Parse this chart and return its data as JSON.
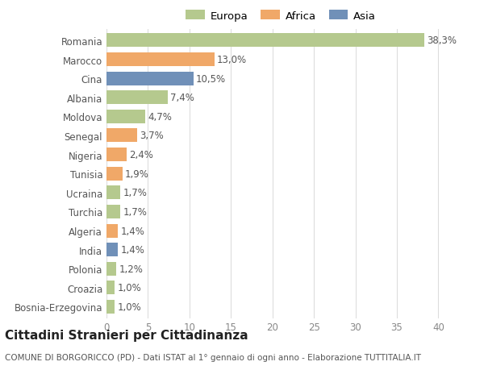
{
  "countries": [
    "Romania",
    "Marocco",
    "Cina",
    "Albania",
    "Moldova",
    "Senegal",
    "Nigeria",
    "Tunisia",
    "Ucraina",
    "Turchia",
    "Algeria",
    "India",
    "Polonia",
    "Croazia",
    "Bosnia-Erzegovina"
  ],
  "values": [
    38.3,
    13.0,
    10.5,
    7.4,
    4.7,
    3.7,
    2.4,
    1.9,
    1.7,
    1.7,
    1.4,
    1.4,
    1.2,
    1.0,
    1.0
  ],
  "labels": [
    "38,3%",
    "13,0%",
    "10,5%",
    "7,4%",
    "4,7%",
    "3,7%",
    "2,4%",
    "1,9%",
    "1,7%",
    "1,7%",
    "1,4%",
    "1,4%",
    "1,2%",
    "1,0%",
    "1,0%"
  ],
  "colors": [
    "#b5c98e",
    "#f0a868",
    "#7090b8",
    "#b5c98e",
    "#b5c98e",
    "#f0a868",
    "#f0a868",
    "#f0a868",
    "#b5c98e",
    "#b5c98e",
    "#f0a868",
    "#7090b8",
    "#b5c98e",
    "#b5c98e",
    "#b5c98e"
  ],
  "legend_labels": [
    "Europa",
    "Africa",
    "Asia"
  ],
  "legend_colors": [
    "#b5c98e",
    "#f0a868",
    "#7090b8"
  ],
  "title": "Cittadini Stranieri per Cittadinanza",
  "subtitle": "COMUNE DI BORGORICCO (PD) - Dati ISTAT al 1° gennaio di ogni anno - Elaborazione TUTTITALIA.IT",
  "xlim": [
    0,
    42
  ],
  "xticks": [
    0,
    5,
    10,
    15,
    20,
    25,
    30,
    35,
    40
  ],
  "bg_color": "#ffffff",
  "grid_color": "#dddddd",
  "bar_height": 0.72,
  "label_fontsize": 8.5,
  "tick_fontsize": 8.5,
  "title_fontsize": 11,
  "subtitle_fontsize": 7.5,
  "legend_fontsize": 9.5
}
